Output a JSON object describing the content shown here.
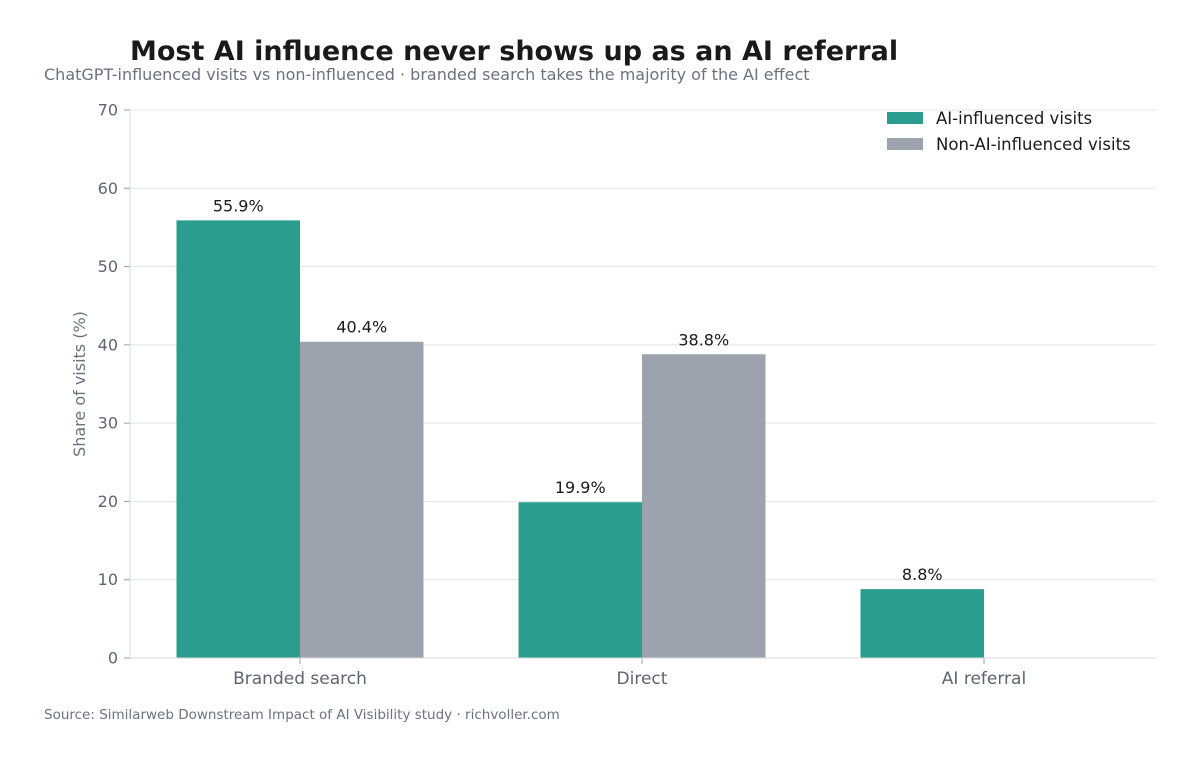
{
  "title": "Most AI influence never shows up as an AI referral",
  "subtitle": "ChatGPT-influenced visits vs non-influenced · branded search takes the majority of the AI effect",
  "source": "Source: Similarweb Downstream Impact of AI Visibility study · richvoller.com",
  "chart_data": {
    "type": "bar",
    "title": "Most AI influence never shows up as an AI referral",
    "subtitle": "ChatGPT-influenced visits vs non-influenced · branded search takes the majority of the AI effect",
    "xlabel": "",
    "ylabel": "Share of visits (%)",
    "ylim": [
      0,
      70
    ],
    "yticks": [
      0,
      10,
      20,
      30,
      40,
      50,
      60,
      70
    ],
    "grid": true,
    "legend_position": "top-right",
    "categories": [
      "Branded search",
      "Direct",
      "AI referral"
    ],
    "series": [
      {
        "name": "AI-influenced visits",
        "color": "#2a9d8f",
        "values": [
          55.9,
          19.9,
          8.8
        ],
        "labels": [
          "55.9%",
          "19.9%",
          "8.8%"
        ]
      },
      {
        "name": "Non-AI-influenced visits",
        "color": "#9ca3ad",
        "values": [
          40.4,
          38.8,
          null
        ],
        "labels": [
          "40.4%",
          "38.8%",
          null
        ]
      }
    ]
  }
}
